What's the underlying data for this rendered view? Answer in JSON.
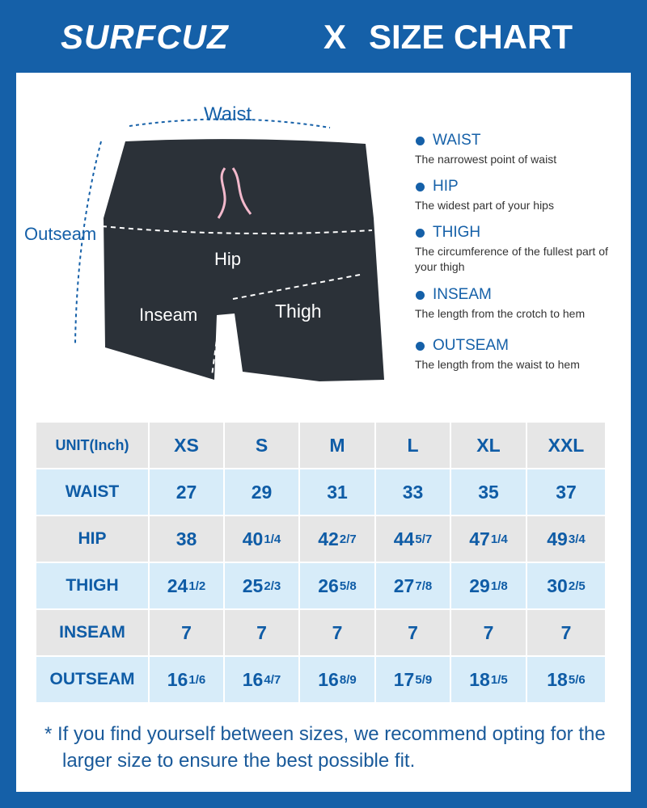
{
  "header": {
    "brand": "SURFCUZ",
    "separator": "X",
    "title": "SIZE CHART"
  },
  "diagram": {
    "labels": {
      "waist": "Waist",
      "outseam": "Outseam",
      "hip": "Hip",
      "inseam": "Inseam",
      "thigh": "Thigh"
    }
  },
  "definitions": [
    {
      "term": "WAIST",
      "text": "The narrowest point of waist"
    },
    {
      "term": "HIP",
      "text": "The widest part of your hips"
    },
    {
      "term": "THIGH",
      "text": "The circumference of the fullest part of your thigh"
    },
    {
      "term": "INSEAM",
      "text": "The length from the crotch to hem"
    },
    {
      "term": "OUTSEAM",
      "text": "The length from the waist to hem"
    }
  ],
  "table": {
    "header": [
      "UNIT(Inch)",
      "XS",
      "S",
      "M",
      "L",
      "XL",
      "XXL"
    ],
    "rows": [
      [
        "WAIST",
        "27",
        "29",
        "31",
        "33",
        "35",
        "37"
      ],
      [
        "HIP",
        "38",
        {
          "whole": "40",
          "fraction": "1/4"
        },
        {
          "whole": "42",
          "fraction": "2/7"
        },
        {
          "whole": "44",
          "fraction": "5/7"
        },
        {
          "whole": "47",
          "fraction": "1/4"
        },
        {
          "whole": "49",
          "fraction": "3/4"
        }
      ],
      [
        "THIGH",
        {
          "whole": "24",
          "fraction": "1/2"
        },
        {
          "whole": "25",
          "fraction": "2/3"
        },
        {
          "whole": "26",
          "fraction": "5/8"
        },
        {
          "whole": "27",
          "fraction": "7/8"
        },
        {
          "whole": "29",
          "fraction": "1/8"
        },
        {
          "whole": "30",
          "fraction": "2/5"
        }
      ],
      [
        "INSEAM",
        "7",
        "7",
        "7",
        "7",
        "7",
        "7"
      ],
      [
        "OUTSEAM",
        {
          "whole": "16",
          "fraction": "1/6"
        },
        {
          "whole": "16",
          "fraction": "4/7"
        },
        {
          "whole": "16",
          "fraction": "8/9"
        },
        {
          "whole": "17",
          "fraction": "5/9"
        },
        {
          "whole": "18",
          "fraction": "1/5"
        },
        {
          "whole": "18",
          "fraction": "5/6"
        }
      ]
    ]
  },
  "footnote": "* If you find yourself between sizes, we recommend opting for the larger size to ensure the best possible fit."
}
